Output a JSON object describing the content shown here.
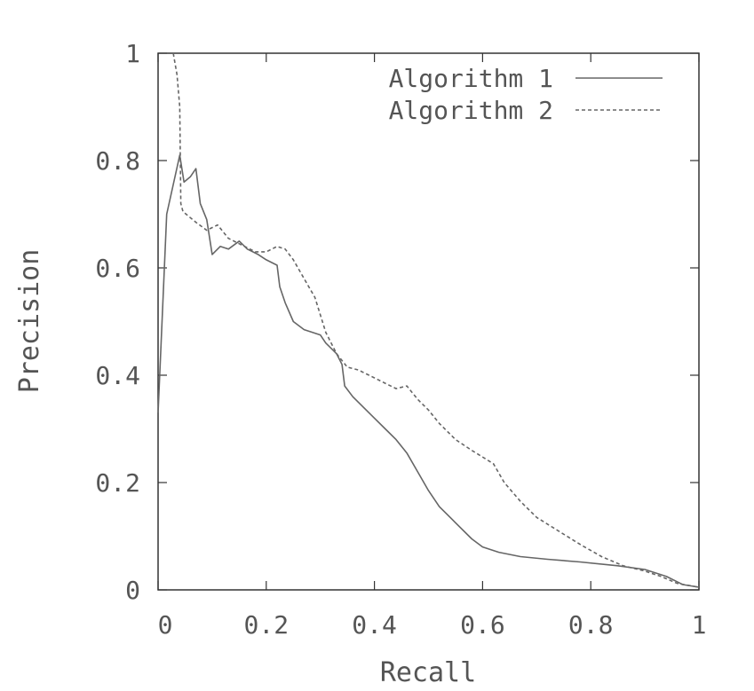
{
  "chart_data": {
    "type": "line",
    "title": "",
    "xlabel": "Recall",
    "ylabel": "Precision",
    "xlim": [
      0,
      1
    ],
    "ylim": [
      0,
      1
    ],
    "xticks": [
      "0",
      "0.2",
      "0.4",
      "0.6",
      "0.8",
      "1"
    ],
    "yticks": [
      "0",
      "0.2",
      "0.4",
      "0.6",
      "0.8",
      "1"
    ],
    "grid": false,
    "legend_position": "top-right",
    "series": [
      {
        "name": "Algorithm 1",
        "style": "solid",
        "color": "#666666",
        "points": [
          [
            0.0,
            0.33
          ],
          [
            0.016,
            0.7
          ],
          [
            0.04,
            0.81
          ],
          [
            0.048,
            0.76
          ],
          [
            0.06,
            0.77
          ],
          [
            0.07,
            0.785
          ],
          [
            0.078,
            0.72
          ],
          [
            0.09,
            0.69
          ],
          [
            0.1,
            0.625
          ],
          [
            0.115,
            0.64
          ],
          [
            0.13,
            0.635
          ],
          [
            0.15,
            0.65
          ],
          [
            0.165,
            0.635
          ],
          [
            0.185,
            0.625
          ],
          [
            0.2,
            0.615
          ],
          [
            0.22,
            0.605
          ],
          [
            0.225,
            0.565
          ],
          [
            0.235,
            0.535
          ],
          [
            0.25,
            0.5
          ],
          [
            0.27,
            0.485
          ],
          [
            0.285,
            0.48
          ],
          [
            0.3,
            0.475
          ],
          [
            0.31,
            0.46
          ],
          [
            0.33,
            0.44
          ],
          [
            0.34,
            0.42
          ],
          [
            0.345,
            0.38
          ],
          [
            0.36,
            0.36
          ],
          [
            0.38,
            0.34
          ],
          [
            0.4,
            0.32
          ],
          [
            0.42,
            0.3
          ],
          [
            0.44,
            0.28
          ],
          [
            0.46,
            0.255
          ],
          [
            0.48,
            0.22
          ],
          [
            0.5,
            0.185
          ],
          [
            0.52,
            0.155
          ],
          [
            0.55,
            0.125
          ],
          [
            0.58,
            0.095
          ],
          [
            0.6,
            0.08
          ],
          [
            0.63,
            0.07
          ],
          [
            0.67,
            0.062
          ],
          [
            0.72,
            0.057
          ],
          [
            0.78,
            0.052
          ],
          [
            0.85,
            0.045
          ],
          [
            0.9,
            0.038
          ],
          [
            0.94,
            0.025
          ],
          [
            0.97,
            0.01
          ],
          [
            1.0,
            0.005
          ]
        ]
      },
      {
        "name": "Algorithm 2",
        "style": "dashed",
        "color": "#666666",
        "points": [
          [
            0.028,
            1.0
          ],
          [
            0.035,
            0.96
          ],
          [
            0.04,
            0.9
          ],
          [
            0.042,
            0.72
          ],
          [
            0.046,
            0.705
          ],
          [
            0.07,
            0.685
          ],
          [
            0.09,
            0.67
          ],
          [
            0.11,
            0.68
          ],
          [
            0.13,
            0.655
          ],
          [
            0.15,
            0.645
          ],
          [
            0.18,
            0.63
          ],
          [
            0.2,
            0.63
          ],
          [
            0.22,
            0.64
          ],
          [
            0.235,
            0.635
          ],
          [
            0.25,
            0.615
          ],
          [
            0.27,
            0.58
          ],
          [
            0.29,
            0.545
          ],
          [
            0.31,
            0.48
          ],
          [
            0.33,
            0.44
          ],
          [
            0.35,
            0.415
          ],
          [
            0.37,
            0.41
          ],
          [
            0.4,
            0.395
          ],
          [
            0.42,
            0.385
          ],
          [
            0.44,
            0.375
          ],
          [
            0.46,
            0.38
          ],
          [
            0.48,
            0.355
          ],
          [
            0.5,
            0.335
          ],
          [
            0.52,
            0.31
          ],
          [
            0.55,
            0.28
          ],
          [
            0.58,
            0.26
          ],
          [
            0.62,
            0.235
          ],
          [
            0.64,
            0.2
          ],
          [
            0.67,
            0.165
          ],
          [
            0.7,
            0.135
          ],
          [
            0.74,
            0.11
          ],
          [
            0.78,
            0.085
          ],
          [
            0.82,
            0.062
          ],
          [
            0.86,
            0.045
          ],
          [
            0.9,
            0.035
          ],
          [
            0.93,
            0.025
          ],
          [
            0.96,
            0.012
          ],
          [
            1.0,
            0.005
          ]
        ]
      }
    ]
  }
}
